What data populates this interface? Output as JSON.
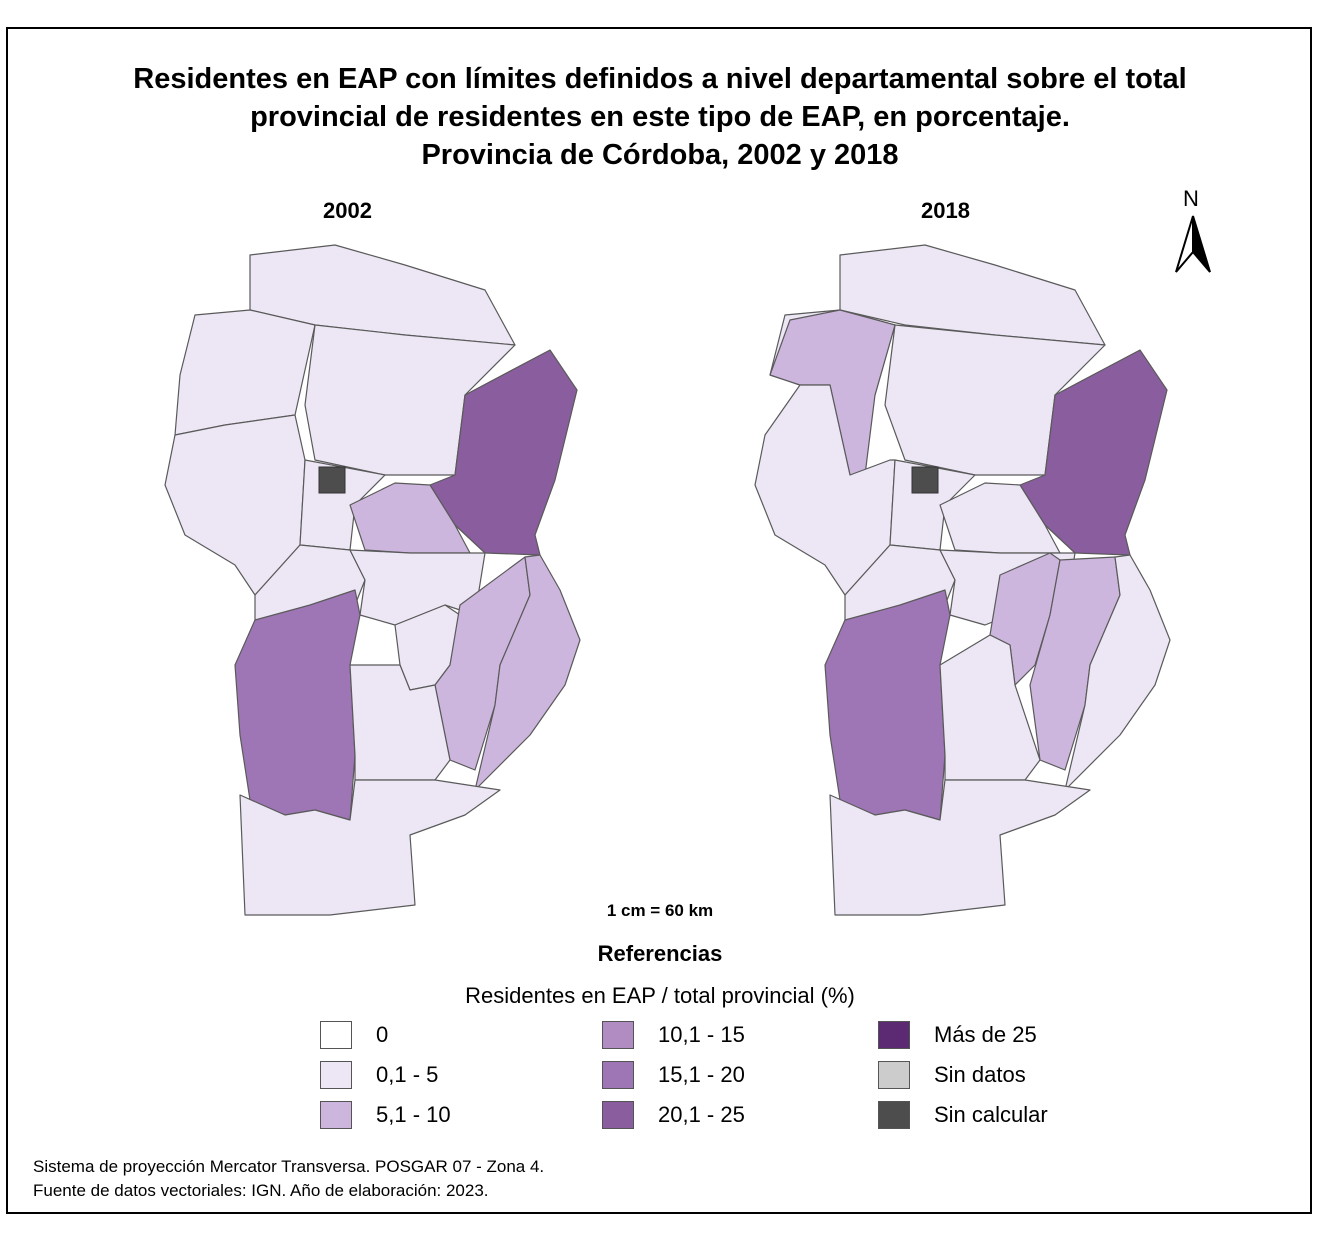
{
  "title": {
    "line1": "Residentes en EAP con límites definidos a nivel departamental sobre el total",
    "line2": "provincial de residentes en este tipo de EAP, en porcentaje.",
    "line3": "Provincia de Córdoba, 2002 y 2018"
  },
  "maps": {
    "left_year": "2002",
    "right_year": "2018"
  },
  "north_label": "N",
  "scale_text": "1 cm = 60 km",
  "legend": {
    "title": "Referencias",
    "subtitle": "Residentes en EAP / total provincial (%)",
    "items": [
      {
        "label": "0",
        "color": "#ffffff"
      },
      {
        "label": "0,1 - 5",
        "color": "#ede7f5"
      },
      {
        "label": "5,1 - 10",
        "color": "#cdb6dd"
      },
      {
        "label": "10,1 - 15",
        "color": "#b08cc3"
      },
      {
        "label": "15,1 - 20",
        "color": "#9e76b5"
      },
      {
        "label": "20,1 - 25",
        "color": "#8a5d9e"
      },
      {
        "label": "Más de 25",
        "color": "#5b2a72"
      },
      {
        "label": "Sin datos",
        "color": "#cccccc"
      },
      {
        "label": "Sin calcular",
        "color": "#4d4d4d"
      }
    ]
  },
  "region_classes": {
    "2002": {
      "san_justo": "20,1 - 25",
      "rio_primero": "5,1 - 10",
      "rio_cuarto": "15,1 - 20",
      "union": "5,1 - 10",
      "marcos_juarez": "5,1 - 10",
      "capital": "Sin calcular",
      "other_departments": "0,1 - 5"
    },
    "2018": {
      "san_justo": "20,1 - 25",
      "cruz_del_eje": "5,1 - 10",
      "rio_cuarto": "15,1 - 20",
      "tercero_arriba": "5,1 - 10",
      "union": "5,1 - 10",
      "capital": "Sin calcular",
      "other_departments": "0,1 - 5"
    }
  },
  "footer": {
    "line1": "Sistema de proyección Mercator Transversa. POSGAR 07 - Zona 4.",
    "line2": "Fuente de datos vectoriales: IGN. Año de elaboración: 2023."
  }
}
